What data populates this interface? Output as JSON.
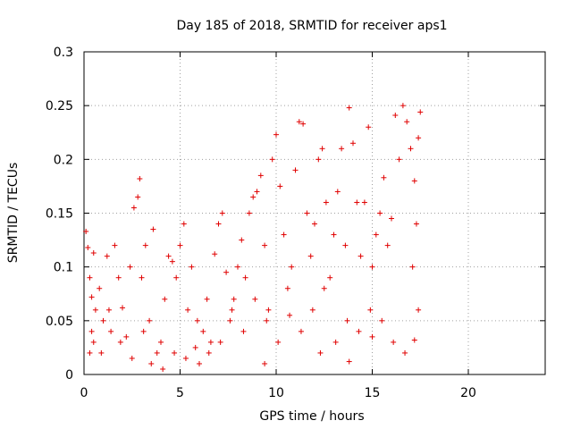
{
  "chart_data": {
    "type": "scatter",
    "title": "Day 185 of 2018, SRMTID for receiver aps1",
    "xlabel": "GPS time / hours",
    "ylabel": "SRMTID / TECUs",
    "xlim": [
      0,
      24
    ],
    "ylim": [
      0,
      0.3
    ],
    "x_ticks": [
      0,
      5,
      10,
      15,
      20
    ],
    "x_tick_labels": [
      "0",
      "5",
      "10",
      "15",
      "20"
    ],
    "y_ticks": [
      0,
      0.05,
      0.1,
      0.15,
      0.2,
      0.25,
      0.3
    ],
    "y_tick_labels": [
      "0",
      "0.05",
      "0.1",
      "0.15",
      "0.2",
      "0.25",
      "0.3"
    ],
    "grid": true,
    "marker": "plus",
    "color": "#e00000",
    "series": [
      {
        "name": "aps1",
        "points": [
          [
            0.1,
            0.133
          ],
          [
            0.2,
            0.118
          ],
          [
            0.3,
            0.09
          ],
          [
            0.4,
            0.072
          ],
          [
            0.5,
            0.113
          ],
          [
            0.6,
            0.06
          ],
          [
            0.3,
            0.02
          ],
          [
            0.5,
            0.03
          ],
          [
            0.8,
            0.08
          ],
          [
            1.0,
            0.05
          ],
          [
            1.2,
            0.11
          ],
          [
            1.4,
            0.04
          ],
          [
            1.6,
            0.12
          ],
          [
            1.8,
            0.09
          ],
          [
            2.0,
            0.062
          ],
          [
            2.2,
            0.035
          ],
          [
            2.4,
            0.1
          ],
          [
            2.6,
            0.155
          ],
          [
            2.8,
            0.165
          ],
          [
            2.9,
            0.182
          ],
          [
            3.0,
            0.09
          ],
          [
            3.2,
            0.12
          ],
          [
            3.4,
            0.05
          ],
          [
            3.6,
            0.135
          ],
          [
            3.8,
            0.02
          ],
          [
            4.0,
            0.03
          ],
          [
            4.2,
            0.07
          ],
          [
            4.4,
            0.11
          ],
          [
            4.6,
            0.105
          ],
          [
            4.8,
            0.09
          ],
          [
            5.0,
            0.12
          ],
          [
            5.2,
            0.14
          ],
          [
            5.4,
            0.06
          ],
          [
            5.6,
            0.1
          ],
          [
            5.8,
            0.025
          ],
          [
            6.0,
            0.01
          ],
          [
            6.2,
            0.04
          ],
          [
            6.4,
            0.07
          ],
          [
            6.6,
            0.03
          ],
          [
            6.8,
            0.112
          ],
          [
            7.0,
            0.14
          ],
          [
            7.2,
            0.15
          ],
          [
            7.4,
            0.095
          ],
          [
            7.6,
            0.05
          ],
          [
            7.8,
            0.07
          ],
          [
            8.0,
            0.1
          ],
          [
            8.2,
            0.125
          ],
          [
            8.4,
            0.09
          ],
          [
            8.6,
            0.15
          ],
          [
            8.8,
            0.165
          ],
          [
            9.0,
            0.17
          ],
          [
            9.2,
            0.185
          ],
          [
            9.4,
            0.12
          ],
          [
            9.6,
            0.06
          ],
          [
            9.8,
            0.2
          ],
          [
            10.0,
            0.223
          ],
          [
            10.2,
            0.175
          ],
          [
            10.4,
            0.13
          ],
          [
            10.6,
            0.08
          ],
          [
            10.8,
            0.1
          ],
          [
            11.0,
            0.19
          ],
          [
            11.2,
            0.235
          ],
          [
            11.4,
            0.233
          ],
          [
            11.6,
            0.15
          ],
          [
            11.8,
            0.11
          ],
          [
            12.0,
            0.14
          ],
          [
            12.2,
            0.2
          ],
          [
            12.4,
            0.21
          ],
          [
            12.6,
            0.16
          ],
          [
            12.8,
            0.09
          ],
          [
            13.0,
            0.13
          ],
          [
            13.2,
            0.17
          ],
          [
            13.4,
            0.21
          ],
          [
            13.6,
            0.12
          ],
          [
            13.8,
            0.248
          ],
          [
            14.0,
            0.215
          ],
          [
            14.2,
            0.16
          ],
          [
            14.4,
            0.11
          ],
          [
            14.6,
            0.16
          ],
          [
            14.8,
            0.23
          ],
          [
            15.0,
            0.1
          ],
          [
            15.2,
            0.13
          ],
          [
            15.4,
            0.15
          ],
          [
            15.6,
            0.183
          ],
          [
            15.8,
            0.12
          ],
          [
            16.0,
            0.145
          ],
          [
            16.2,
            0.241
          ],
          [
            16.4,
            0.2
          ],
          [
            16.6,
            0.25
          ],
          [
            16.8,
            0.235
          ],
          [
            17.0,
            0.21
          ],
          [
            17.2,
            0.18
          ],
          [
            17.4,
            0.22
          ],
          [
            17.5,
            0.244
          ],
          [
            17.3,
            0.14
          ],
          [
            17.1,
            0.1
          ],
          [
            0.4,
            0.04
          ],
          [
            0.9,
            0.02
          ],
          [
            1.3,
            0.06
          ],
          [
            1.9,
            0.03
          ],
          [
            2.5,
            0.015
          ],
          [
            3.1,
            0.04
          ],
          [
            3.5,
            0.01
          ],
          [
            4.1,
            0.005
          ],
          [
            4.7,
            0.02
          ],
          [
            5.3,
            0.015
          ],
          [
            5.9,
            0.05
          ],
          [
            6.5,
            0.02
          ],
          [
            7.1,
            0.03
          ],
          [
            7.7,
            0.06
          ],
          [
            8.3,
            0.04
          ],
          [
            8.9,
            0.07
          ],
          [
            9.5,
            0.05
          ],
          [
            10.1,
            0.03
          ],
          [
            10.7,
            0.055
          ],
          [
            11.3,
            0.04
          ],
          [
            11.9,
            0.06
          ],
          [
            12.5,
            0.08
          ],
          [
            13.1,
            0.03
          ],
          [
            13.7,
            0.05
          ],
          [
            13.8,
            0.012
          ],
          [
            14.3,
            0.04
          ],
          [
            14.9,
            0.06
          ],
          [
            15.5,
            0.05
          ],
          [
            16.1,
            0.03
          ],
          [
            16.7,
            0.02
          ],
          [
            17.2,
            0.032
          ],
          [
            17.4,
            0.06
          ],
          [
            9.4,
            0.01
          ],
          [
            12.3,
            0.02
          ],
          [
            15.0,
            0.035
          ]
        ]
      }
    ]
  }
}
